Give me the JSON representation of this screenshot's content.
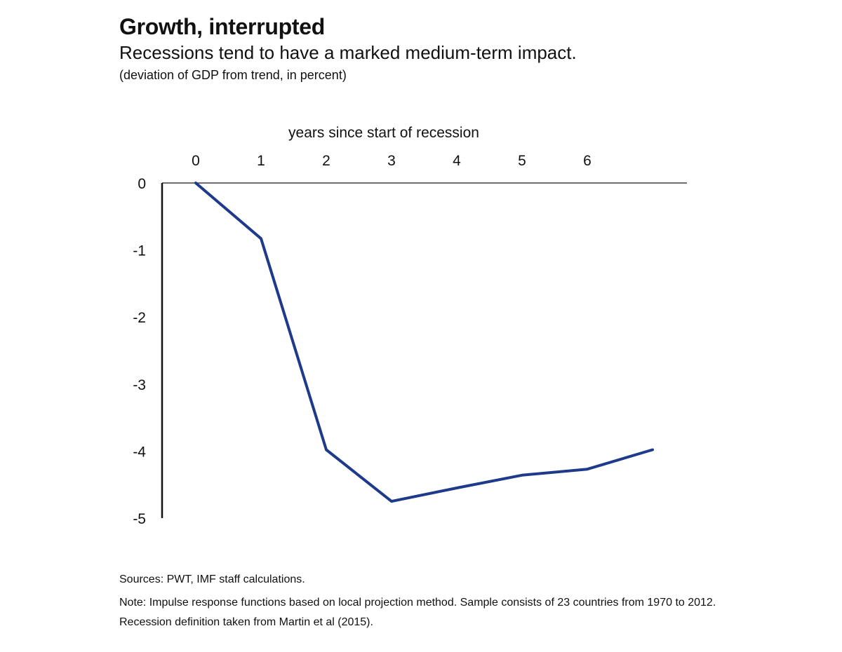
{
  "header": {
    "title": "Growth, interrupted",
    "subtitle": "Recessions tend to have a marked medium-term impact.",
    "unit": "(deviation of GDP from trend, in percent)"
  },
  "footer": {
    "sources": "Sources: PWT, IMF staff calculations.",
    "note": "Note: Impulse response functions based on local projection method. Sample consists of 23 countries from 1970 to 2012. Recession definition taken from Martin et al (2015)."
  },
  "chart_data": {
    "type": "line",
    "title": "Growth, interrupted",
    "subtitle": "Recessions tend to have a marked medium-term impact.",
    "ylabel": "(deviation of GDP from trend, in percent)",
    "xlabel": "years since start of recession",
    "x": [
      0,
      1,
      2,
      3,
      4,
      5,
      6,
      7
    ],
    "x_tick_labels": [
      "0",
      "1",
      "2",
      "3",
      "4",
      "5",
      "6"
    ],
    "y_tick_labels": [
      "0",
      "-1",
      "-2",
      "-3",
      "-4",
      "-5"
    ],
    "ylim": [
      -5,
      0
    ],
    "xlim": [
      -0.5,
      7.5
    ],
    "x_axis_position": "top",
    "grid": false,
    "legend": "none",
    "series": [
      {
        "values": [
          0,
          -0.83,
          -3.98,
          -4.75,
          -4.55,
          -4.36,
          -4.27,
          -3.98
        ],
        "color": "#1f3a8a"
      }
    ]
  }
}
